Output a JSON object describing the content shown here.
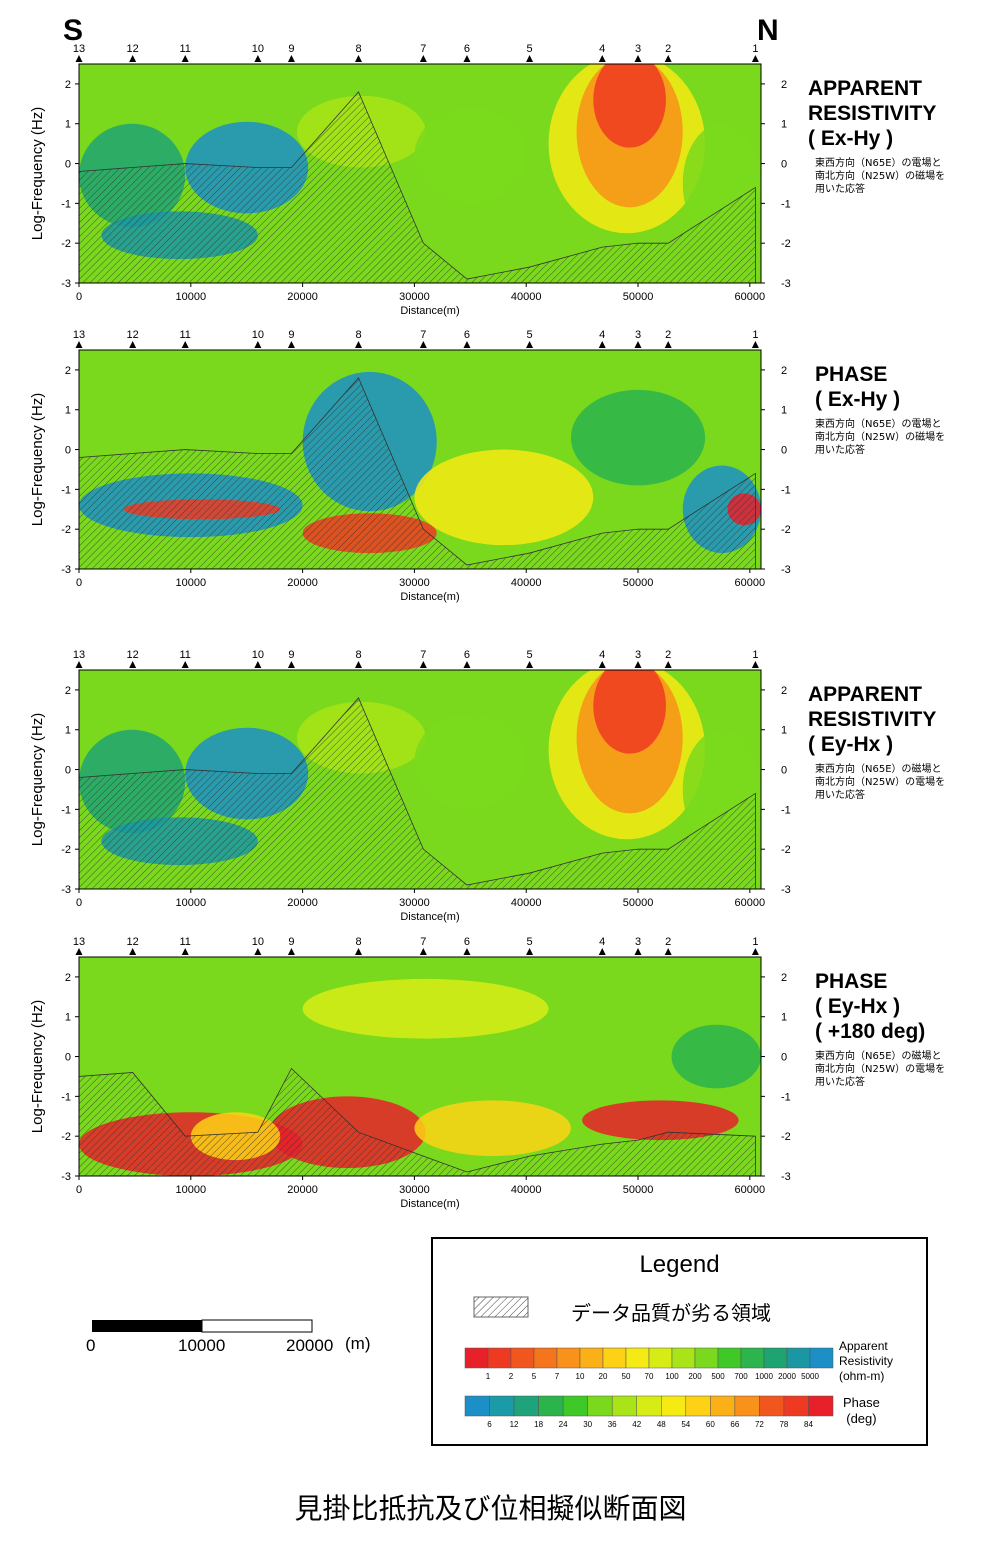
{
  "directions": {
    "south": "S",
    "north": "N"
  },
  "stations": [
    {
      "label": "13",
      "x_m": 0
    },
    {
      "label": "12",
      "x_m": 4800
    },
    {
      "label": "11",
      "x_m": 9500
    },
    {
      "label": "10",
      "x_m": 16000
    },
    {
      "label": "9",
      "x_m": 19000
    },
    {
      "label": "8",
      "x_m": 25000
    },
    {
      "label": "7",
      "x_m": 30800
    },
    {
      "label": "6",
      "x_m": 34700
    },
    {
      "label": "5",
      "x_m": 40300
    },
    {
      "label": "4",
      "x_m": 46800
    },
    {
      "label": "3",
      "x_m": 50000
    },
    {
      "label": "2",
      "x_m": 52700
    },
    {
      "label": "1",
      "x_m": 60500
    }
  ],
  "panels": [
    {
      "title_lines": [
        "APPARENT",
        "RESISTIVITY",
        "( Ex-Hy )"
      ],
      "note_lines": [
        "東西方向（N65E）の電場と",
        "南北方向（N25W）の磁場を",
        "用いた応答"
      ],
      "kind": "resistivity"
    },
    {
      "title_lines": [
        "PHASE",
        "( Ex-Hy )"
      ],
      "note_lines": [
        "東西方向（N65E）の電場と",
        "南北方向（N25W）の磁場を",
        "用いた応答"
      ],
      "kind": "phase"
    },
    {
      "title_lines": [
        "APPARENT",
        "RESISTIVITY",
        "( Ey-Hx )"
      ],
      "note_lines": [
        "東西方向（N65E）の磁場と",
        "南北方向（N25W）の電場を",
        "用いた応答"
      ],
      "kind": "resistivity"
    },
    {
      "title_lines": [
        "PHASE",
        "( Ey-Hx )",
        "( +180 deg)"
      ],
      "note_lines": [
        "東西方向（N65E）の磁場と",
        "南北方向（N25W）の電場を",
        "用いた応答"
      ],
      "kind": "phase2"
    }
  ],
  "chart_data": {
    "type": "heatmap",
    "xlabel": "Distance(m)",
    "ylabel": "Log-Frequency (Hz)",
    "xlim": [
      0,
      61000
    ],
    "ylim": [
      -3,
      2.5
    ],
    "x_ticks": [
      0,
      10000,
      20000,
      30000,
      40000,
      50000,
      60000
    ],
    "y_ticks": [
      2,
      1,
      0,
      -1,
      -2,
      -3
    ],
    "y_ticks_right": [
      2,
      1,
      0,
      -1,
      -2,
      -3
    ]
  },
  "legend": {
    "title": "Legend",
    "hatch_label": "データ品質が劣る領域",
    "resistivity": {
      "label_lines": [
        "Apparent",
        "Resistivity",
        "(ohm-m)"
      ],
      "ticks": [
        "1",
        "2",
        "5",
        "7",
        "10",
        "20",
        "50",
        "70",
        "100",
        "200",
        "500",
        "700",
        "1000",
        "2000",
        "5000"
      ],
      "colors": [
        "#e8202a",
        "#ee3a22",
        "#f2561f",
        "#f5741c",
        "#f8921a",
        "#fbb017",
        "#fdd215",
        "#f6ea14",
        "#d7ec15",
        "#a9e418",
        "#7ad91c",
        "#3fc928",
        "#2bb54c",
        "#1ea372",
        "#1b96a3",
        "#1b8fc6"
      ]
    },
    "phase": {
      "label_lines": [
        "Phase",
        "(deg)"
      ],
      "ticks": [
        "6",
        "12",
        "18",
        "24",
        "30",
        "36",
        "42",
        "48",
        "54",
        "60",
        "66",
        "72",
        "78",
        "84"
      ],
      "colors": [
        "#1b8fc6",
        "#1b9aa8",
        "#1ea37a",
        "#2bb34c",
        "#3fc928",
        "#7ad91c",
        "#a9e418",
        "#d7ec15",
        "#f6ea14",
        "#fdd215",
        "#fbb017",
        "#f8921a",
        "#f2561f",
        "#ee3a22",
        "#e8202a"
      ]
    }
  },
  "scale_bar": {
    "ticks": [
      "0",
      "10000",
      "20000"
    ],
    "unit": "(m)"
  },
  "figure_title": "見掛比抵抗及び位相擬似断面図"
}
